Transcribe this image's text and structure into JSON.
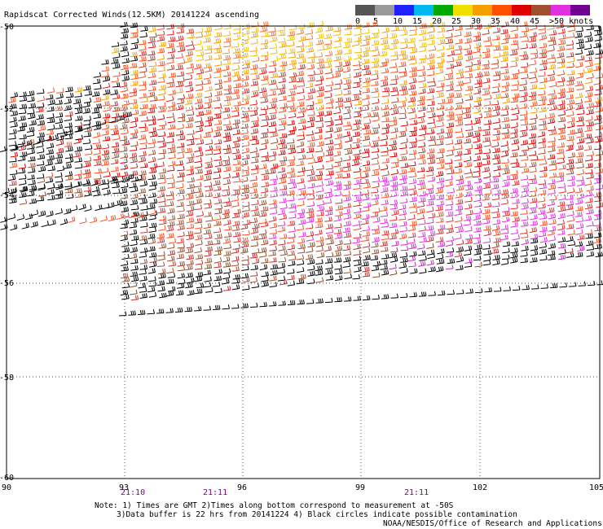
{
  "title": "Rapidscat Corrected Winds(12.5KM) 20141224 ascending",
  "legend": {
    "colors": [
      "#555555",
      "#9a9a9a",
      "#2020ff",
      "#00b8f0",
      "#00a800",
      "#f0e000",
      "#f5a000",
      "#ff5000",
      "#e00000",
      "#a05030",
      "#e030e0",
      "#700090"
    ],
    "labels": [
      "0",
      "5",
      "10",
      "15",
      "20",
      "25",
      "30",
      "35",
      "40",
      "45",
      ">50 knots"
    ]
  },
  "axes": {
    "lon_ticks": [
      "90",
      "93",
      "96",
      "99",
      "102",
      "105"
    ],
    "lat_ticks": [
      "-50",
      "-52",
      "-54",
      "-56",
      "-58",
      "-60"
    ],
    "lon_range": [
      90,
      105
    ],
    "lat_range": [
      -60,
      -50
    ]
  },
  "times": [
    "21:10",
    "21:11",
    "21:11"
  ],
  "notes": {
    "line1": "Note: 1) Times are GMT 2)Times along bottom correspond to measurement at -50S",
    "line2": "3)Data buffer is 22 hrs from 20141224 4) Black circles indicate possible contamination",
    "credit": "NOAA/NESDIS/Office of Research and Applications"
  }
}
